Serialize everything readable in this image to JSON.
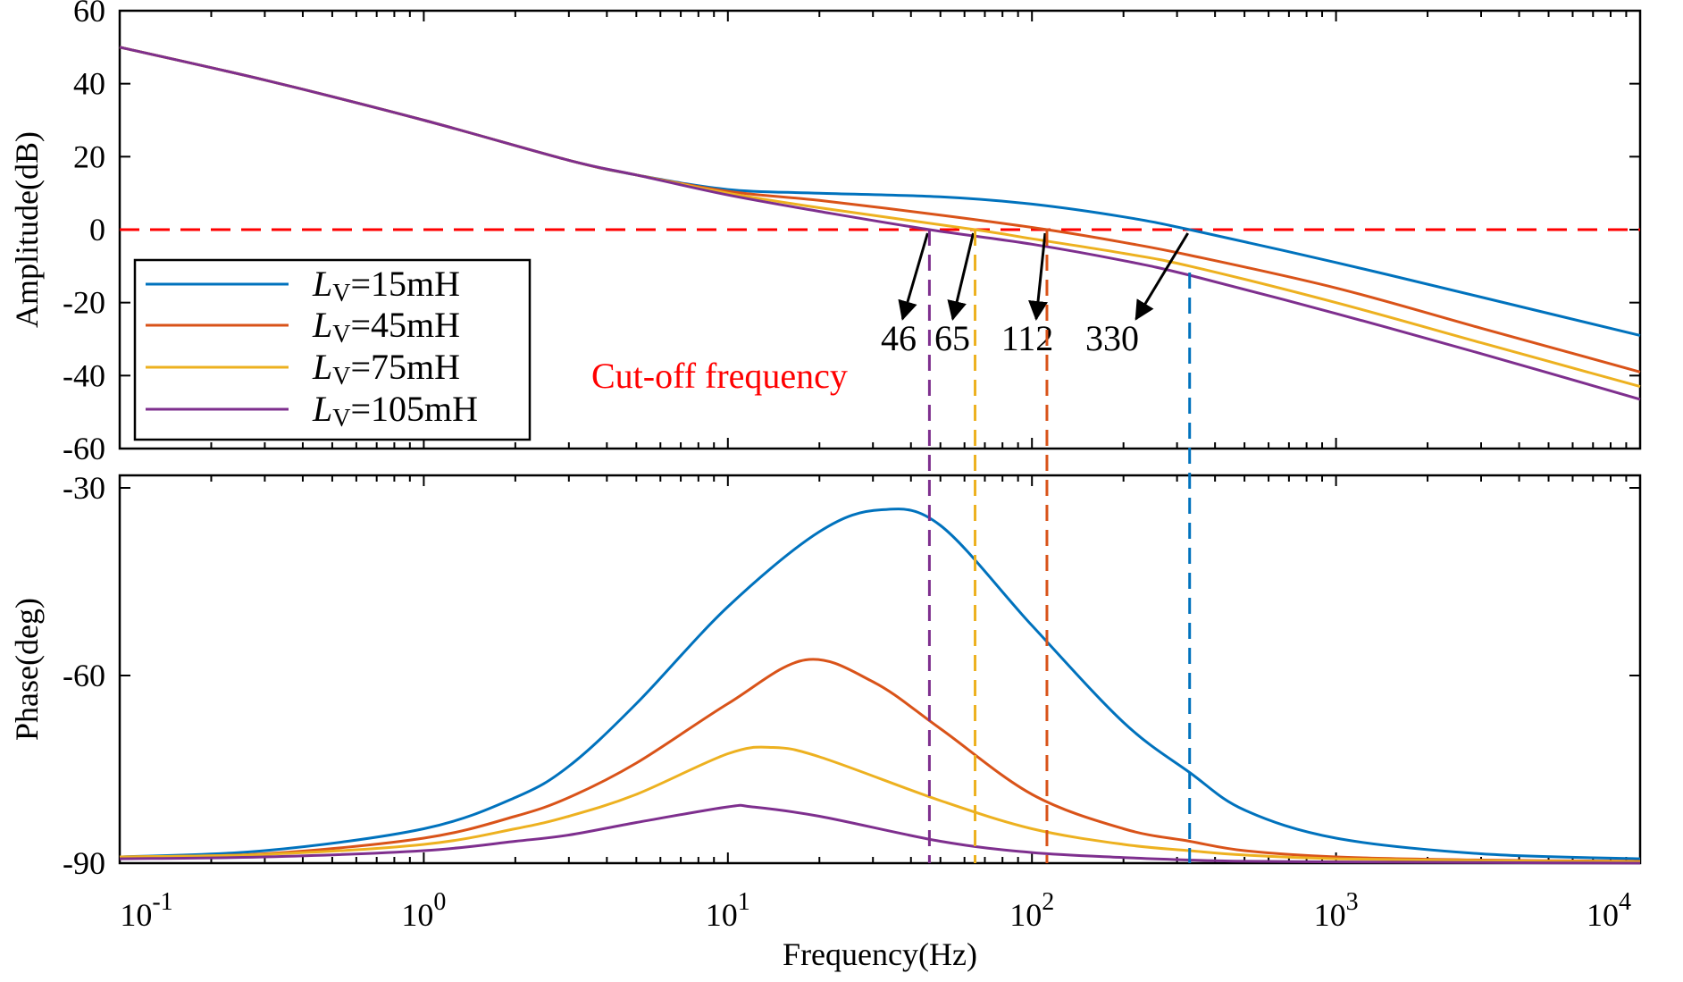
{
  "chart_data": [
    {
      "type": "line",
      "panel": "amplitude",
      "ylabel": "Amplitude(dB)",
      "xscale": "log",
      "xlim": [
        0.1,
        10000
      ],
      "ylim": [
        -60,
        60
      ],
      "yticks": [
        "60",
        "40",
        "20",
        "0",
        "-20",
        "-40",
        "-60"
      ],
      "ytick_values": [
        60,
        40,
        20,
        0,
        -20,
        -40,
        -60
      ],
      "grid": false,
      "legend_position": "bottom-left",
      "legend": [
        {
          "prefix": "L",
          "sub": "V",
          "suffix": "=15mH"
        },
        {
          "prefix": "L",
          "sub": "V",
          "suffix": "=45mH"
        },
        {
          "prefix": "L",
          "sub": "V",
          "suffix": "=75mH"
        },
        {
          "prefix": "L",
          "sub": "V",
          "suffix": "=105mH"
        }
      ],
      "series": [
        {
          "name": "LV=15mH",
          "color": "#0072BD",
          "x": [
            0.1,
            0.3,
            1,
            3,
            5,
            10,
            20,
            50,
            100,
            200,
            330,
            1000,
            3000,
            10000
          ],
          "y": [
            50,
            41,
            30,
            19,
            15,
            11,
            10,
            9,
            7,
            3.5,
            0,
            -9,
            -18.5,
            -29
          ]
        },
        {
          "name": "LV=45mH",
          "color": "#D95319",
          "x": [
            0.1,
            0.3,
            1,
            3,
            5,
            10,
            20,
            50,
            112,
            200,
            330,
            1000,
            3000,
            10000
          ],
          "y": [
            50,
            41,
            30,
            19,
            15,
            10.5,
            8,
            4,
            0,
            -3.5,
            -7,
            -16,
            -27,
            -39
          ]
        },
        {
          "name": "LV=75mH",
          "color": "#EDB120",
          "x": [
            0.1,
            0.3,
            1,
            3,
            5,
            10,
            20,
            65,
            100,
            200,
            330,
            1000,
            3000,
            10000
          ],
          "y": [
            50,
            41,
            30,
            19,
            15,
            10,
            6,
            0,
            -2.5,
            -6.5,
            -10,
            -20,
            -31,
            -43
          ]
        },
        {
          "name": "LV=105mH",
          "color": "#7E2F8E",
          "x": [
            0.1,
            0.3,
            1,
            3,
            5,
            10,
            20,
            46,
            100,
            200,
            330,
            1000,
            3000,
            10000
          ],
          "y": [
            50,
            41,
            30,
            19,
            15,
            9.5,
            5,
            0,
            -4,
            -8.5,
            -12.5,
            -23,
            -34,
            -46.5
          ]
        }
      ],
      "reference_line": {
        "y": 0,
        "color": "#FF0000",
        "style": "dashed"
      },
      "annotations": {
        "cutoff_label": "Cut-off frequency",
        "cutoff_color": "#FF0000",
        "markers": [
          {
            "label": "46",
            "x": 46,
            "color": "#7E2F8E"
          },
          {
            "label": "65",
            "x": 65,
            "color": "#EDB120"
          },
          {
            "label": "112",
            "x": 112,
            "color": "#D95319"
          },
          {
            "label": "330",
            "x": 330,
            "color": "#0072BD"
          }
        ]
      }
    },
    {
      "type": "line",
      "panel": "phase",
      "xlabel": "Frequency(Hz)",
      "ylabel": "Phase(deg)",
      "xscale": "log",
      "xlim": [
        0.1,
        10000
      ],
      "ylim": [
        -90,
        -28
      ],
      "yticks": [
        "-30",
        "-60",
        "-90"
      ],
      "ytick_values": [
        -30,
        -60,
        -90
      ],
      "xticks": [
        {
          "base": "10",
          "exp": "-1",
          "value": 0.1
        },
        {
          "base": "10",
          "exp": "0",
          "value": 1
        },
        {
          "base": "10",
          "exp": "1",
          "value": 10
        },
        {
          "base": "10",
          "exp": "2",
          "value": 100
        },
        {
          "base": "10",
          "exp": "3",
          "value": 1000
        },
        {
          "base": "10",
          "exp": "4",
          "value": 10000
        }
      ],
      "grid": false,
      "series": [
        {
          "name": "LV=15mH",
          "color": "#0072BD",
          "x": [
            0.1,
            0.3,
            1,
            2,
            3,
            5,
            10,
            20,
            32,
            50,
            100,
            200,
            330,
            500,
            1000,
            3000,
            10000
          ],
          "y": [
            -89,
            -88,
            -84.5,
            -79.5,
            -74.5,
            -64.5,
            -49,
            -37,
            -33.5,
            -36,
            -52,
            -67.5,
            -75.5,
            -81.5,
            -86,
            -88.5,
            -89.3
          ]
        },
        {
          "name": "LV=45mH",
          "color": "#D95319",
          "x": [
            0.1,
            0.3,
            1,
            2,
            3,
            5,
            10,
            18,
            30,
            50,
            100,
            200,
            330,
            500,
            1000,
            3000,
            10000
          ],
          "y": [
            -89,
            -88.5,
            -86,
            -82.5,
            -79.5,
            -74,
            -64.5,
            -57.5,
            -61,
            -68.5,
            -79,
            -84.5,
            -86.5,
            -88,
            -89,
            -89.5,
            -89.7
          ]
        },
        {
          "name": "LV=75mH",
          "color": "#EDB120",
          "x": [
            0.1,
            0.3,
            1,
            2,
            3,
            5,
            10,
            14,
            20,
            50,
            100,
            200,
            330,
            500,
            1000,
            3000,
            10000
          ],
          "y": [
            -89,
            -88.6,
            -87,
            -84.5,
            -82.5,
            -79,
            -72.5,
            -71.5,
            -73,
            -80,
            -84.5,
            -87,
            -88,
            -88.7,
            -89.3,
            -89.6,
            -89.8
          ]
        },
        {
          "name": "LV=105mH",
          "color": "#7E2F8E",
          "x": [
            0.1,
            0.3,
            1,
            2,
            3,
            5,
            10,
            12,
            20,
            50,
            100,
            200,
            330,
            500,
            1000,
            3000,
            10000
          ],
          "y": [
            -89.3,
            -89,
            -88,
            -86.5,
            -85.5,
            -83.5,
            -81,
            -81,
            -82.5,
            -86.5,
            -88.3,
            -89.1,
            -89.5,
            -89.7,
            -89.8,
            -89.9,
            -90
          ]
        }
      ],
      "cutoff_lines": [
        {
          "x": 46,
          "color": "#7E2F8E"
        },
        {
          "x": 65,
          "color": "#EDB120"
        },
        {
          "x": 112,
          "color": "#D95319"
        },
        {
          "x": 330,
          "color": "#0072BD"
        }
      ]
    }
  ]
}
